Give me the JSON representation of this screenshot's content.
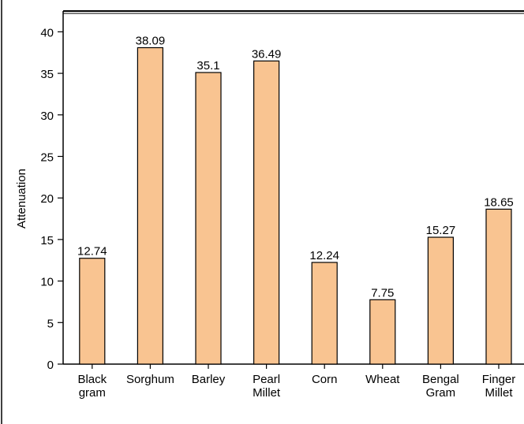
{
  "chart_data": {
    "type": "bar",
    "y_label": "Attenuation",
    "categories": [
      "Black gram",
      "Sorghum",
      "Barley",
      "Pearl Millet",
      "Corn",
      "Wheat",
      "Bengal Gram",
      "Finger Millet"
    ],
    "values": [
      12.74,
      38.09,
      35.1,
      36.49,
      12.24,
      7.75,
      15.27,
      18.65
    ],
    "color": "#f9c491",
    "ylim": [
      0,
      42.5
    ],
    "yticks": [
      0,
      5,
      10,
      15,
      20,
      25,
      30,
      35,
      40
    ]
  }
}
